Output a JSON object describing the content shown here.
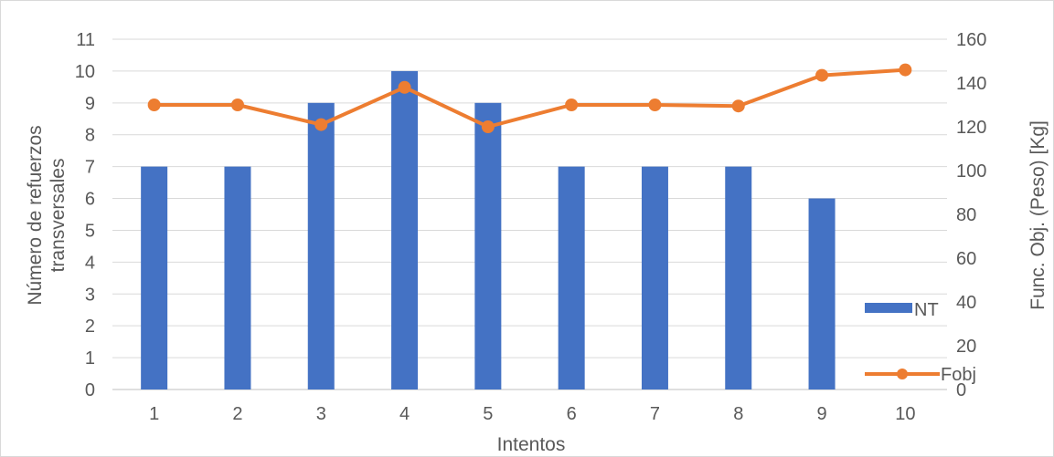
{
  "chart_data": {
    "type": "bar",
    "categories": [
      "1",
      "2",
      "3",
      "4",
      "5",
      "6",
      "7",
      "8",
      "9",
      "10"
    ],
    "series": [
      {
        "name": "NT",
        "type": "bar",
        "axis": "left",
        "color": "#4472C4",
        "values": [
          7,
          7,
          9,
          10,
          9,
          7,
          7,
          7,
          6,
          0
        ]
      },
      {
        "name": "Fobj",
        "type": "line",
        "axis": "right",
        "color": "#ED7D31",
        "values": [
          130,
          130,
          121,
          138,
          120,
          130,
          130,
          129.5,
          143.5,
          146
        ]
      }
    ],
    "xlabel": "Intentos",
    "ylabel": [
      "Número de refuerzos",
      "transversales"
    ],
    "y2label": "Func. Obj. (Peso) [Kg]",
    "ylim": [
      0,
      11
    ],
    "yticks": [
      "0",
      "1",
      "2",
      "3",
      "4",
      "5",
      "6",
      "7",
      "8",
      "9",
      "10",
      "11"
    ],
    "y2lim": [
      0,
      160
    ],
    "y2ticks": [
      "0",
      "20",
      "40",
      "60",
      "80",
      "100",
      "120",
      "140",
      "160"
    ],
    "grid": true,
    "legend": "bottom-right"
  }
}
